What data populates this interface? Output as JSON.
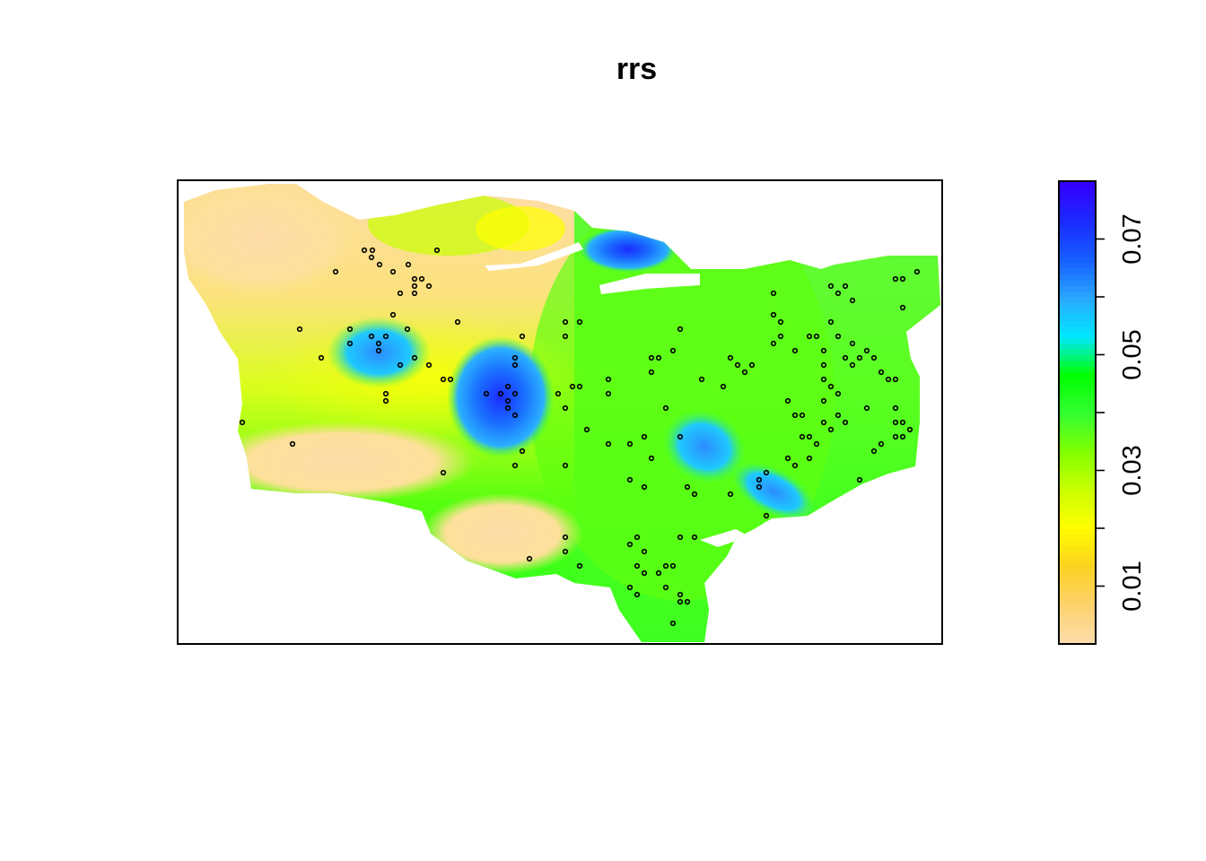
{
  "title": "rrs",
  "legend": {
    "tick_values": [
      0.01,
      0.03,
      0.05,
      0.07
    ],
    "tick_labels": [
      "0.01",
      "0.03",
      "0.05",
      "0.07"
    ],
    "range": [
      0.0,
      0.08
    ],
    "minor_ticks": [
      0.01,
      0.02,
      0.03,
      0.04,
      0.05,
      0.06,
      0.07
    ],
    "colors": [
      "#fddca9",
      "#fdd26a",
      "#fcd21f",
      "#ffff00",
      "#c8ff00",
      "#80ff00",
      "#33ff33",
      "#00ff00",
      "#00e8ff",
      "#2aa8ff",
      "#1560ff",
      "#1a2cff",
      "#3300ff"
    ]
  },
  "chart_data": {
    "type": "heatmap",
    "title": "rrs",
    "value_range": [
      0.0,
      0.08
    ],
    "colorbar_ticks": [
      0.01,
      0.03,
      0.05,
      0.07
    ],
    "points_shown": true
  }
}
